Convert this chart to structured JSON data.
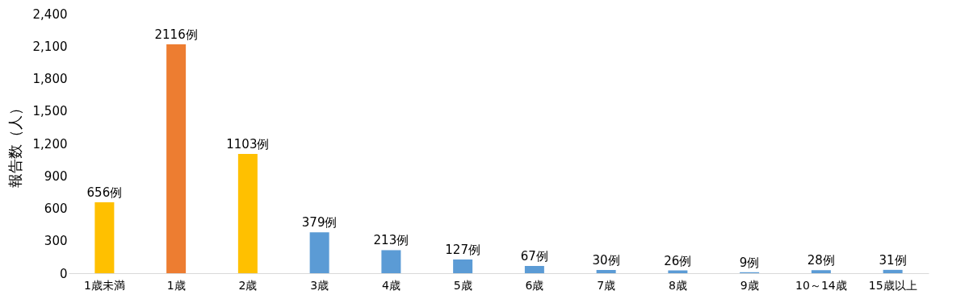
{
  "chart_data": {
    "type": "bar",
    "ylabel": "報告数（人）",
    "categories": [
      "1歳未満",
      "1歳",
      "2歳",
      "3歳",
      "4歳",
      "5歳",
      "6歳",
      "7歳",
      "8歳",
      "9歳",
      "10～14歳",
      "15歳以上"
    ],
    "values": [
      656,
      2116,
      1103,
      379,
      213,
      127,
      67,
      30,
      26,
      9,
      28,
      31
    ],
    "colors": [
      "#ffc000",
      "#ed7d31",
      "#ffc000",
      "#5b9bd5",
      "#5b9bd5",
      "#5b9bd5",
      "#5b9bd5",
      "#5b9bd5",
      "#5b9bd5",
      "#5b9bd5",
      "#5b9bd5",
      "#5b9bd5"
    ],
    "value_labels": [
      "656例",
      "2116例",
      "1103例",
      "379例",
      "213例",
      "127例",
      "67例",
      "30例",
      "26例",
      "9例",
      "28例",
      "31例"
    ],
    "ylim": [
      0,
      2400
    ],
    "yticks": [
      0,
      {
        "value": 300,
        "label": "300"
      },
      {
        "value": 600,
        "label": "600"
      },
      {
        "value": 900,
        "label": "900"
      },
      {
        "value": 1200,
        "label": "1,200"
      },
      {
        "value": 1500,
        "label": "1,500"
      },
      {
        "value": 1800,
        "label": "1,800"
      },
      {
        "value": 2100,
        "label": "2,100"
      },
      {
        "value": 2400,
        "label": "2,400"
      }
    ],
    "grid": false
  }
}
